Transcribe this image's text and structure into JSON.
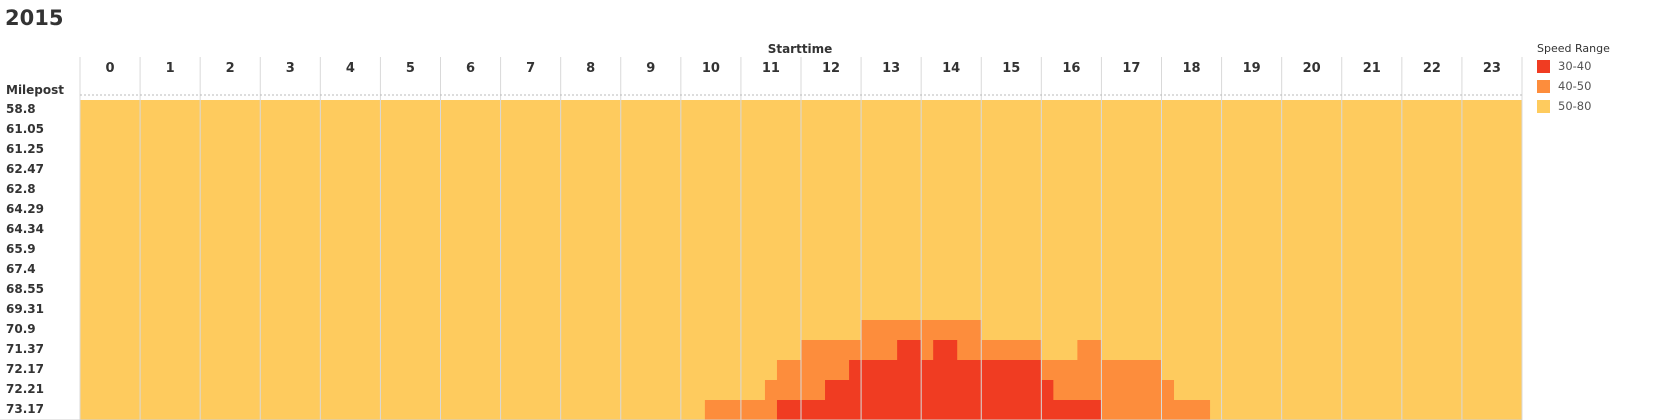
{
  "title": "2015",
  "chart_data": {
    "type": "heatmap",
    "title": "2015",
    "xlabel": "Starttime",
    "ylabel": "Milepost",
    "x": [
      "0",
      "1",
      "2",
      "3",
      "4",
      "5",
      "6",
      "7",
      "8",
      "9",
      "10",
      "11",
      "12",
      "13",
      "14",
      "15",
      "16",
      "17",
      "18",
      "19",
      "20",
      "21",
      "22",
      "23"
    ],
    "y": [
      "58.8",
      "61.05",
      "61.25",
      "62.47",
      "62.8",
      "64.29",
      "64.34",
      "65.9",
      "67.4",
      "68.55",
      "69.31",
      "70.9",
      "71.37",
      "72.17",
      "72.21",
      "73.17"
    ],
    "time_resolution_hours": 0.2,
    "legend": {
      "title": "Speed Range",
      "placement": "right",
      "categories": [
        {
          "label": "30-40",
          "color": "#f03c22"
        },
        {
          "label": "40-50",
          "color": "#fd8d3c"
        },
        {
          "label": "50-80",
          "color": "#fecb5e"
        }
      ]
    },
    "default_category": "50-80",
    "cells": [
      {
        "milepost": "70.9",
        "from": 13.0,
        "to": 15.0,
        "range": "40-50"
      },
      {
        "milepost": "71.37",
        "from": 12.0,
        "to": 13.6,
        "range": "40-50"
      },
      {
        "milepost": "71.37",
        "from": 13.6,
        "to": 14.0,
        "range": "30-40"
      },
      {
        "milepost": "71.37",
        "from": 14.0,
        "to": 14.2,
        "range": "40-50"
      },
      {
        "milepost": "71.37",
        "from": 14.2,
        "to": 14.6,
        "range": "30-40"
      },
      {
        "milepost": "71.37",
        "from": 14.6,
        "to": 16.0,
        "range": "40-50"
      },
      {
        "milepost": "71.37",
        "from": 16.6,
        "to": 17.0,
        "range": "40-50"
      },
      {
        "milepost": "72.17",
        "from": 11.6,
        "to": 12.8,
        "range": "40-50"
      },
      {
        "milepost": "72.17",
        "from": 12.8,
        "to": 16.0,
        "range": "30-40"
      },
      {
        "milepost": "72.17",
        "from": 16.0,
        "to": 18.0,
        "range": "40-50"
      },
      {
        "milepost": "72.21",
        "from": 11.4,
        "to": 12.4,
        "range": "40-50"
      },
      {
        "milepost": "72.21",
        "from": 12.4,
        "to": 16.0,
        "range": "30-40"
      },
      {
        "milepost": "72.21",
        "from": 16.0,
        "to": 16.2,
        "range": "30-40"
      },
      {
        "milepost": "72.21",
        "from": 16.2,
        "to": 18.0,
        "range": "40-50"
      },
      {
        "milepost": "72.21",
        "from": 18.0,
        "to": 18.2,
        "range": "40-50"
      },
      {
        "milepost": "73.17",
        "from": 10.4,
        "to": 11.6,
        "range": "40-50"
      },
      {
        "milepost": "73.17",
        "from": 11.6,
        "to": 17.0,
        "range": "30-40"
      },
      {
        "milepost": "73.17",
        "from": 17.0,
        "to": 18.8,
        "range": "40-50"
      }
    ]
  }
}
